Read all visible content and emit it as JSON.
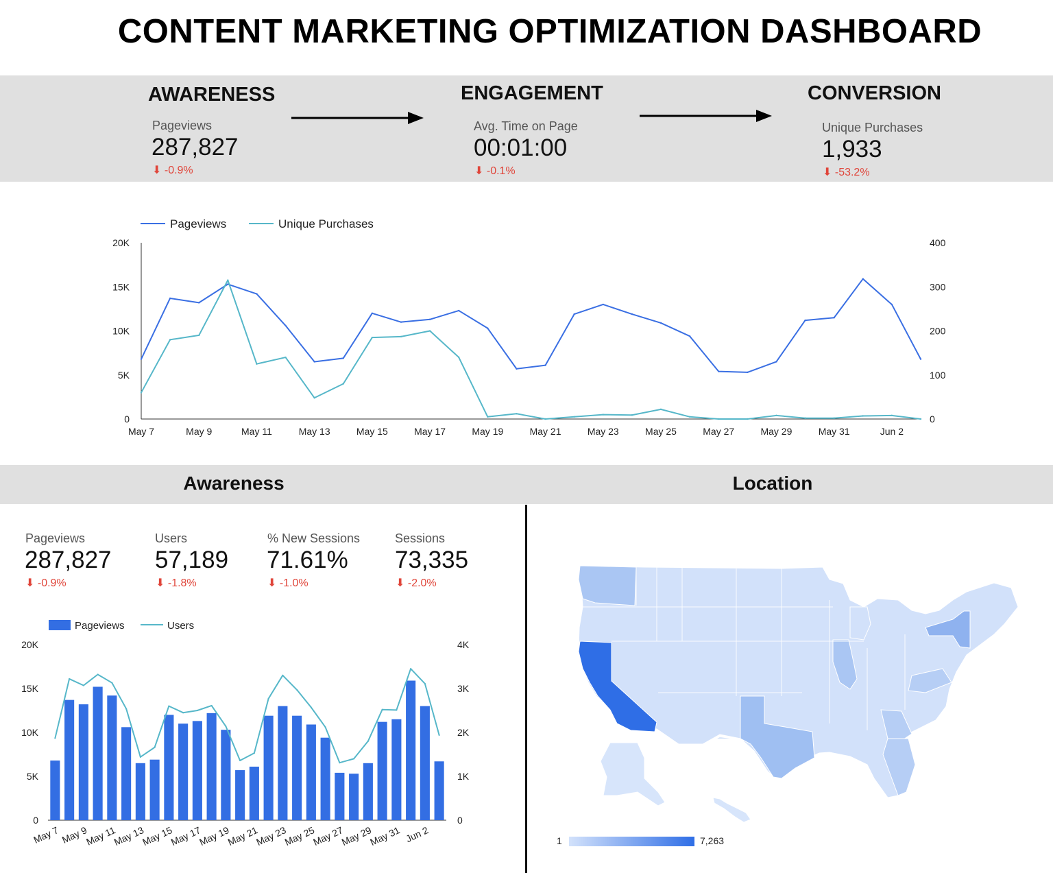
{
  "title": "CONTENT MARKETING OPTIMIZATION DASHBOARD",
  "funnel": {
    "awareness": {
      "title": "AWARENESS",
      "label": "Pageviews",
      "value": "287,827",
      "delta": "-0.9%"
    },
    "engagement": {
      "title": "ENGAGEMENT",
      "label": "Avg. Time on Page",
      "value": "00:01:00",
      "delta": "-0.1%"
    },
    "conversion": {
      "title": "CONVERSION",
      "label": "Unique Purchases",
      "value": "1,933",
      "delta": "-53.2%"
    }
  },
  "colors": {
    "pageviews": "#3a6fe3",
    "purchases": "#56b7c9",
    "users": "#56b7c9",
    "bars": "#336ee3",
    "delta": "#e0453a",
    "map_low": "#d3e2fb",
    "map_high": "#2f6ee6"
  },
  "sections": {
    "awareness": "Awareness",
    "location": "Location"
  },
  "awareness_kpis": [
    {
      "label": "Pageviews",
      "value": "287,827",
      "delta": "-0.9%"
    },
    {
      "label": "Users",
      "value": "57,189",
      "delta": "-1.8%"
    },
    {
      "label": "% New Sessions",
      "value": "71.61%",
      "delta": "-1.0%"
    },
    {
      "label": "Sessions",
      "value": "73,335",
      "delta": "-2.0%"
    }
  ],
  "map_legend": {
    "min": "1",
    "max": "7,263"
  },
  "chart_data": [
    {
      "type": "line",
      "title": "",
      "x": [
        "May 7",
        "May 8",
        "May 9",
        "May 10",
        "May 11",
        "May 12",
        "May 13",
        "May 14",
        "May 15",
        "May 16",
        "May 17",
        "May 18",
        "May 19",
        "May 20",
        "May 21",
        "May 22",
        "May 23",
        "May 24",
        "May 25",
        "May 26",
        "May 27",
        "May 28",
        "May 29",
        "May 30",
        "May 31",
        "Jun 1",
        "Jun 2",
        "Jun 3"
      ],
      "x_tick_labels": [
        "May 7",
        "May 9",
        "May 11",
        "May 13",
        "May 15",
        "May 17",
        "May 19",
        "May 21",
        "May 23",
        "May 25",
        "May 27",
        "May 29",
        "May 31",
        "Jun 2"
      ],
      "series": [
        {
          "name": "Pageviews",
          "axis": "left",
          "values": [
            6800,
            13700,
            13200,
            15300,
            14200,
            10600,
            6500,
            6900,
            12000,
            11000,
            11300,
            12300,
            10300,
            5700,
            6100,
            11900,
            13000,
            11900,
            10900,
            9400,
            5400,
            5300,
            6500,
            11200,
            11500,
            15900,
            13000,
            6800
          ]
        },
        {
          "name": "Unique Purchases",
          "axis": "right",
          "values": [
            60,
            180,
            190,
            315,
            125,
            140,
            48,
            80,
            185,
            187,
            200,
            140,
            5,
            12,
            0,
            5,
            10,
            9,
            22,
            5,
            0,
            0,
            8,
            2,
            2,
            7,
            8,
            0
          ]
        }
      ],
      "ylim_left": [
        0,
        20000
      ],
      "ylim_right": [
        0,
        400
      ],
      "yticks_left": [
        "0",
        "5K",
        "10K",
        "15K",
        "20K"
      ],
      "yticks_right": [
        "0",
        "100",
        "200",
        "300",
        "400"
      ],
      "legend": "top-left",
      "grid": false
    },
    {
      "type": "bar",
      "title": "",
      "x": [
        "May 7",
        "May 8",
        "May 9",
        "May 10",
        "May 11",
        "May 12",
        "May 13",
        "May 14",
        "May 15",
        "May 16",
        "May 17",
        "May 18",
        "May 19",
        "May 20",
        "May 21",
        "May 22",
        "May 23",
        "May 24",
        "May 25",
        "May 26",
        "May 27",
        "May 28",
        "May 29",
        "May 30",
        "May 31",
        "Jun 1",
        "Jun 2",
        "Jun 3"
      ],
      "x_tick_labels": [
        "May 7",
        "May 9",
        "May 11",
        "May 13",
        "May 15",
        "May 17",
        "May 19",
        "May 21",
        "May 23",
        "May 25",
        "May 27",
        "May 29",
        "May 31",
        "Jun 2"
      ],
      "series": [
        {
          "name": "Pageviews",
          "type": "bar",
          "axis": "left",
          "values": [
            6800,
            13700,
            13200,
            15200,
            14200,
            10600,
            6500,
            6900,
            12000,
            11000,
            11300,
            12200,
            10300,
            5700,
            6100,
            11900,
            13000,
            11900,
            10900,
            9400,
            5400,
            5300,
            6500,
            11200,
            11500,
            15900,
            13000,
            6700
          ]
        },
        {
          "name": "Users",
          "type": "line",
          "axis": "right",
          "values": [
            1870,
            3220,
            3070,
            3320,
            3130,
            2540,
            1440,
            1660,
            2600,
            2450,
            2500,
            2610,
            2140,
            1360,
            1530,
            2770,
            3300,
            2970,
            2570,
            2120,
            1310,
            1400,
            1800,
            2520,
            2510,
            3450,
            3110,
            1940
          ]
        }
      ],
      "ylim_left": [
        0,
        20000
      ],
      "ylim_right": [
        0,
        4000
      ],
      "yticks_left": [
        "0",
        "5K",
        "10K",
        "15K",
        "20K"
      ],
      "yticks_right": [
        "0",
        "1K",
        "2K",
        "3K",
        "4K"
      ],
      "legend": "top-left",
      "grid": false
    }
  ]
}
